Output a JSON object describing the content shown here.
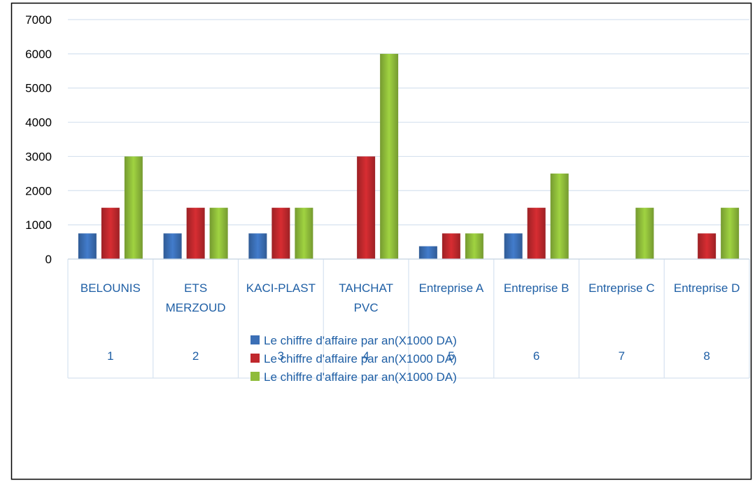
{
  "chart_data": {
    "type": "bar",
    "categories": [
      {
        "name": [
          "BELOUNIS"
        ],
        "number": "1"
      },
      {
        "name": [
          "ETS",
          "MERZOUD"
        ],
        "number": "2"
      },
      {
        "name": [
          "KACI-PLAST"
        ],
        "number": "3"
      },
      {
        "name": [
          "TAHCHAT",
          "PVC"
        ],
        "number": "4"
      },
      {
        "name": [
          "Entreprise A"
        ],
        "number": "5"
      },
      {
        "name": [
          "Entreprise B"
        ],
        "number": "6"
      },
      {
        "name": [
          "Entreprise C"
        ],
        "number": "7"
      },
      {
        "name": [
          "Entreprise D"
        ],
        "number": "8"
      }
    ],
    "series": [
      {
        "name": "Le chiffre d'affaire par an(X1000 DA)",
        "color": "#3b6fb6",
        "values": [
          750,
          750,
          750,
          0,
          375,
          750,
          0,
          0
        ]
      },
      {
        "name": "Le chiffre d'affaire par an(X1000 DA)",
        "color": "#c0282d",
        "values": [
          1500,
          1500,
          1500,
          3000,
          750,
          1500,
          0,
          750
        ]
      },
      {
        "name": "Le chiffre d'affaire par an(X1000 DA)",
        "color": "#8fbc3a",
        "values": [
          3000,
          1500,
          1500,
          6000,
          750,
          2500,
          1500,
          1500
        ]
      }
    ],
    "yticks": [
      "0",
      "1000",
      "2000",
      "3000",
      "4000",
      "5000",
      "6000",
      "7000"
    ],
    "ylim": [
      0,
      7000
    ],
    "grid": true,
    "legend_position": "bottom-center",
    "title": "",
    "xlabel": "",
    "ylabel": ""
  }
}
